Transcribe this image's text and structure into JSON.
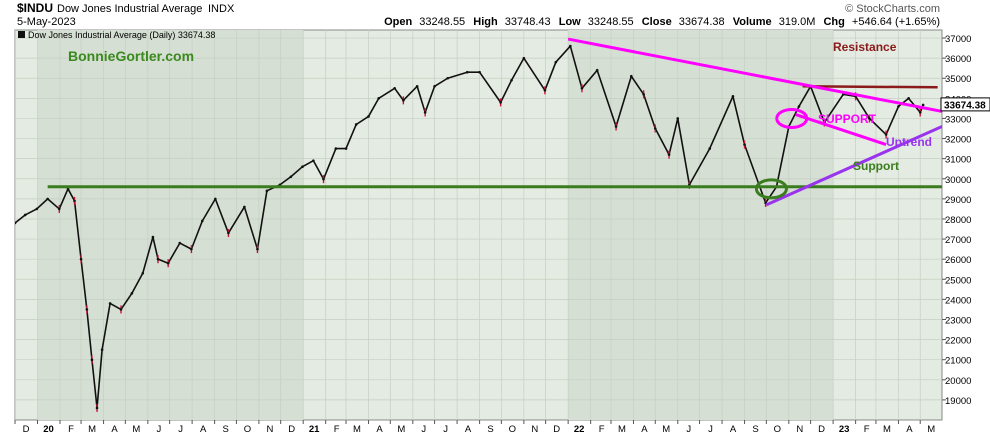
{
  "header": {
    "symbol": "$INDU",
    "name": "Dow Jones Industrial Average",
    "exchange": "INDX",
    "date": "5-May-2023",
    "copyright": "© StockCharts.com",
    "open_label": "Open",
    "open": "33248.55",
    "high_label": "High",
    "high": "33748.43",
    "low_label": "Low",
    "low": "33248.55",
    "close_label": "Close",
    "close": "33674.38",
    "volume_label": "Volume",
    "volume": "319.0M",
    "chg_label": "Chg",
    "chg": "+546.64 (+1.65%)",
    "legend": "Dow Jones Industrial Average (Daily) 33674.38"
  },
  "watermark": "BonnieGortler.com",
  "colors": {
    "panel_bg": "#e4ebe2",
    "shade_bg": "#d6dfd3",
    "price": "#111111",
    "price_down": "#cc1133",
    "resistance": "#8b1a1a",
    "support": "#3a7d1e",
    "trend_support": "#ff00ff",
    "uptrend": "#9933ee",
    "watermark": "#3a8a1e"
  },
  "chart_data": {
    "type": "line",
    "title": "Dow Jones Industrial Average (Daily)",
    "last_value": 33674.38,
    "last_value_label": "33674.38",
    "ylim": [
      18000,
      37400
    ],
    "y_ticks": [
      19000,
      20000,
      21000,
      22000,
      23000,
      24000,
      25000,
      26000,
      27000,
      28000,
      29000,
      30000,
      31000,
      32000,
      33000,
      34000,
      35000,
      36000,
      37000
    ],
    "y_tick_labels": [
      "19000",
      "20000",
      "21000",
      "22000",
      "23000",
      "24000",
      "25000",
      "26000",
      "27000",
      "28000",
      "29000",
      "30000",
      "31000",
      "32000",
      "33000",
      "34000",
      "35000",
      "36000",
      "37000"
    ],
    "x_start": "2019-12-01",
    "x_end": "2023-05-31",
    "x_ticks": [
      {
        "date": "2019-12-01",
        "label": "D",
        "bold": false
      },
      {
        "date": "2020-01-01",
        "label": "20",
        "bold": true
      },
      {
        "date": "2020-02-01",
        "label": "F",
        "bold": false
      },
      {
        "date": "2020-03-01",
        "label": "M",
        "bold": false
      },
      {
        "date": "2020-04-01",
        "label": "A",
        "bold": false
      },
      {
        "date": "2020-05-01",
        "label": "M",
        "bold": false
      },
      {
        "date": "2020-06-01",
        "label": "J",
        "bold": false
      },
      {
        "date": "2020-07-01",
        "label": "J",
        "bold": false
      },
      {
        "date": "2020-08-01",
        "label": "A",
        "bold": false
      },
      {
        "date": "2020-09-01",
        "label": "S",
        "bold": false
      },
      {
        "date": "2020-10-01",
        "label": "O",
        "bold": false
      },
      {
        "date": "2020-11-01",
        "label": "N",
        "bold": false
      },
      {
        "date": "2020-12-01",
        "label": "D",
        "bold": false
      },
      {
        "date": "2021-01-01",
        "label": "21",
        "bold": true
      },
      {
        "date": "2021-02-01",
        "label": "F",
        "bold": false
      },
      {
        "date": "2021-03-01",
        "label": "M",
        "bold": false
      },
      {
        "date": "2021-04-01",
        "label": "A",
        "bold": false
      },
      {
        "date": "2021-05-01",
        "label": "M",
        "bold": false
      },
      {
        "date": "2021-06-01",
        "label": "J",
        "bold": false
      },
      {
        "date": "2021-07-01",
        "label": "J",
        "bold": false
      },
      {
        "date": "2021-08-01",
        "label": "A",
        "bold": false
      },
      {
        "date": "2021-09-01",
        "label": "S",
        "bold": false
      },
      {
        "date": "2021-10-01",
        "label": "O",
        "bold": false
      },
      {
        "date": "2021-11-01",
        "label": "N",
        "bold": false
      },
      {
        "date": "2021-12-01",
        "label": "D",
        "bold": false
      },
      {
        "date": "2022-01-01",
        "label": "22",
        "bold": true
      },
      {
        "date": "2022-02-01",
        "label": "F",
        "bold": false
      },
      {
        "date": "2022-03-01",
        "label": "M",
        "bold": false
      },
      {
        "date": "2022-04-01",
        "label": "A",
        "bold": false
      },
      {
        "date": "2022-05-01",
        "label": "M",
        "bold": false
      },
      {
        "date": "2022-06-01",
        "label": "J",
        "bold": false
      },
      {
        "date": "2022-07-01",
        "label": "J",
        "bold": false
      },
      {
        "date": "2022-08-01",
        "label": "A",
        "bold": false
      },
      {
        "date": "2022-09-01",
        "label": "S",
        "bold": false
      },
      {
        "date": "2022-10-01",
        "label": "O",
        "bold": false
      },
      {
        "date": "2022-11-01",
        "label": "N",
        "bold": false
      },
      {
        "date": "2022-12-01",
        "label": "D",
        "bold": false
      },
      {
        "date": "2023-01-01",
        "label": "23",
        "bold": true
      },
      {
        "date": "2023-02-01",
        "label": "F",
        "bold": false
      },
      {
        "date": "2023-03-01",
        "label": "M",
        "bold": false
      },
      {
        "date": "2023-04-01",
        "label": "A",
        "bold": false
      },
      {
        "date": "2023-05-01",
        "label": "M",
        "bold": false
      }
    ],
    "shaded_ranges": [
      {
        "start": "2020-01-01",
        "end": "2021-01-01"
      },
      {
        "start": "2022-01-01",
        "end": "2023-01-01"
      }
    ],
    "series": [
      {
        "name": "Dow Jones Industrial Average",
        "x": [
          "2019-12-01",
          "2019-12-15",
          "2019-12-31",
          "2020-01-15",
          "2020-01-31",
          "2020-02-12",
          "2020-02-21",
          "2020-03-01",
          "2020-03-09",
          "2020-03-16",
          "2020-03-23",
          "2020-03-30",
          "2020-04-10",
          "2020-04-25",
          "2020-05-10",
          "2020-05-25",
          "2020-06-08",
          "2020-06-15",
          "2020-06-29",
          "2020-07-15",
          "2020-07-31",
          "2020-08-15",
          "2020-09-02",
          "2020-09-20",
          "2020-10-12",
          "2020-10-30",
          "2020-11-12",
          "2020-11-30",
          "2020-12-15",
          "2020-12-31",
          "2021-01-15",
          "2021-01-29",
          "2021-02-15",
          "2021-03-01",
          "2021-03-15",
          "2021-04-01",
          "2021-04-15",
          "2021-05-07",
          "2021-05-19",
          "2021-06-07",
          "2021-06-18",
          "2021-07-01",
          "2021-07-19",
          "2021-08-15",
          "2021-09-01",
          "2021-09-30",
          "2021-10-15",
          "2021-11-01",
          "2021-11-30",
          "2021-12-15",
          "2022-01-04",
          "2022-01-20",
          "2022-02-10",
          "2022-03-08",
          "2022-03-29",
          "2022-04-15",
          "2022-05-01",
          "2022-05-20",
          "2022-06-01",
          "2022-06-17",
          "2022-07-15",
          "2022-08-16",
          "2022-09-01",
          "2022-09-30",
          "2022-10-15",
          "2022-11-01",
          "2022-11-15",
          "2022-12-01",
          "2022-12-20",
          "2023-01-15",
          "2023-02-01",
          "2023-02-20",
          "2023-03-15",
          "2023-04-01",
          "2023-04-15",
          "2023-05-01",
          "2023-05-05"
        ],
        "values": [
          27800,
          28200,
          28500,
          29000,
          28500,
          29500,
          28900,
          26000,
          23500,
          21000,
          18600,
          21500,
          23800,
          23500,
          24300,
          25300,
          27100,
          26000,
          25800,
          26800,
          26500,
          27900,
          29000,
          27300,
          28600,
          26500,
          29400,
          29700,
          30100,
          30600,
          30900,
          29980,
          31500,
          31500,
          32700,
          33100,
          34000,
          34500,
          33900,
          34600,
          33300,
          34600,
          35000,
          35300,
          35300,
          33800,
          34900,
          36000,
          34400,
          35800,
          36600,
          34500,
          35400,
          32600,
          35100,
          34200,
          32500,
          31200,
          33000,
          29700,
          31500,
          34100,
          31700,
          28800,
          29600,
          32600,
          33600,
          34600,
          32800,
          34200,
          34100,
          33000,
          32200,
          33600,
          34000,
          33300,
          33674
        ]
      }
    ],
    "annotations": [
      {
        "type": "text",
        "label": "Resistance",
        "color": "#8b1a1a"
      },
      {
        "type": "text",
        "label": "SUPPORT",
        "color": "#ff00ff"
      },
      {
        "type": "text",
        "label": "Uptrend",
        "color": "#9933ee"
      },
      {
        "type": "text",
        "label": "Support",
        "color": "#3a7d1e"
      },
      {
        "type": "hline",
        "name": "support-line",
        "y": 29600,
        "x_from": "2020-01-15",
        "x_to": "2023-05-31",
        "color": "#3a7d1e"
      },
      {
        "type": "segment",
        "name": "resistance-line",
        "from": {
          "x": "2022-11-20",
          "y": 34600
        },
        "to": {
          "x": "2023-05-25",
          "y": 34550
        },
        "color": "#8b1a1a"
      },
      {
        "type": "segment",
        "name": "downtrend-line",
        "from": {
          "x": "2022-01-01",
          "y": 36950
        },
        "to": {
          "x": "2023-05-31",
          "y": 33350
        },
        "color": "#ff00ff"
      },
      {
        "type": "segment",
        "name": "support-trend-line",
        "from": {
          "x": "2022-11-10",
          "y": 33200
        },
        "to": {
          "x": "2023-03-15",
          "y": 31700
        },
        "color": "#ff00ff"
      },
      {
        "type": "segment",
        "name": "uptrend-line",
        "from": {
          "x": "2022-10-01",
          "y": 28700
        },
        "to": {
          "x": "2023-05-31",
          "y": 32600
        },
        "color": "#9933ee"
      },
      {
        "type": "ellipse",
        "name": "breakout-circle",
        "x": "2022-11-05",
        "y": 33000,
        "color": "#ff00ff"
      },
      {
        "type": "ellipse",
        "name": "low-circle",
        "x": "2022-10-08",
        "y": 29500,
        "color": "#3a7d1e"
      }
    ]
  }
}
